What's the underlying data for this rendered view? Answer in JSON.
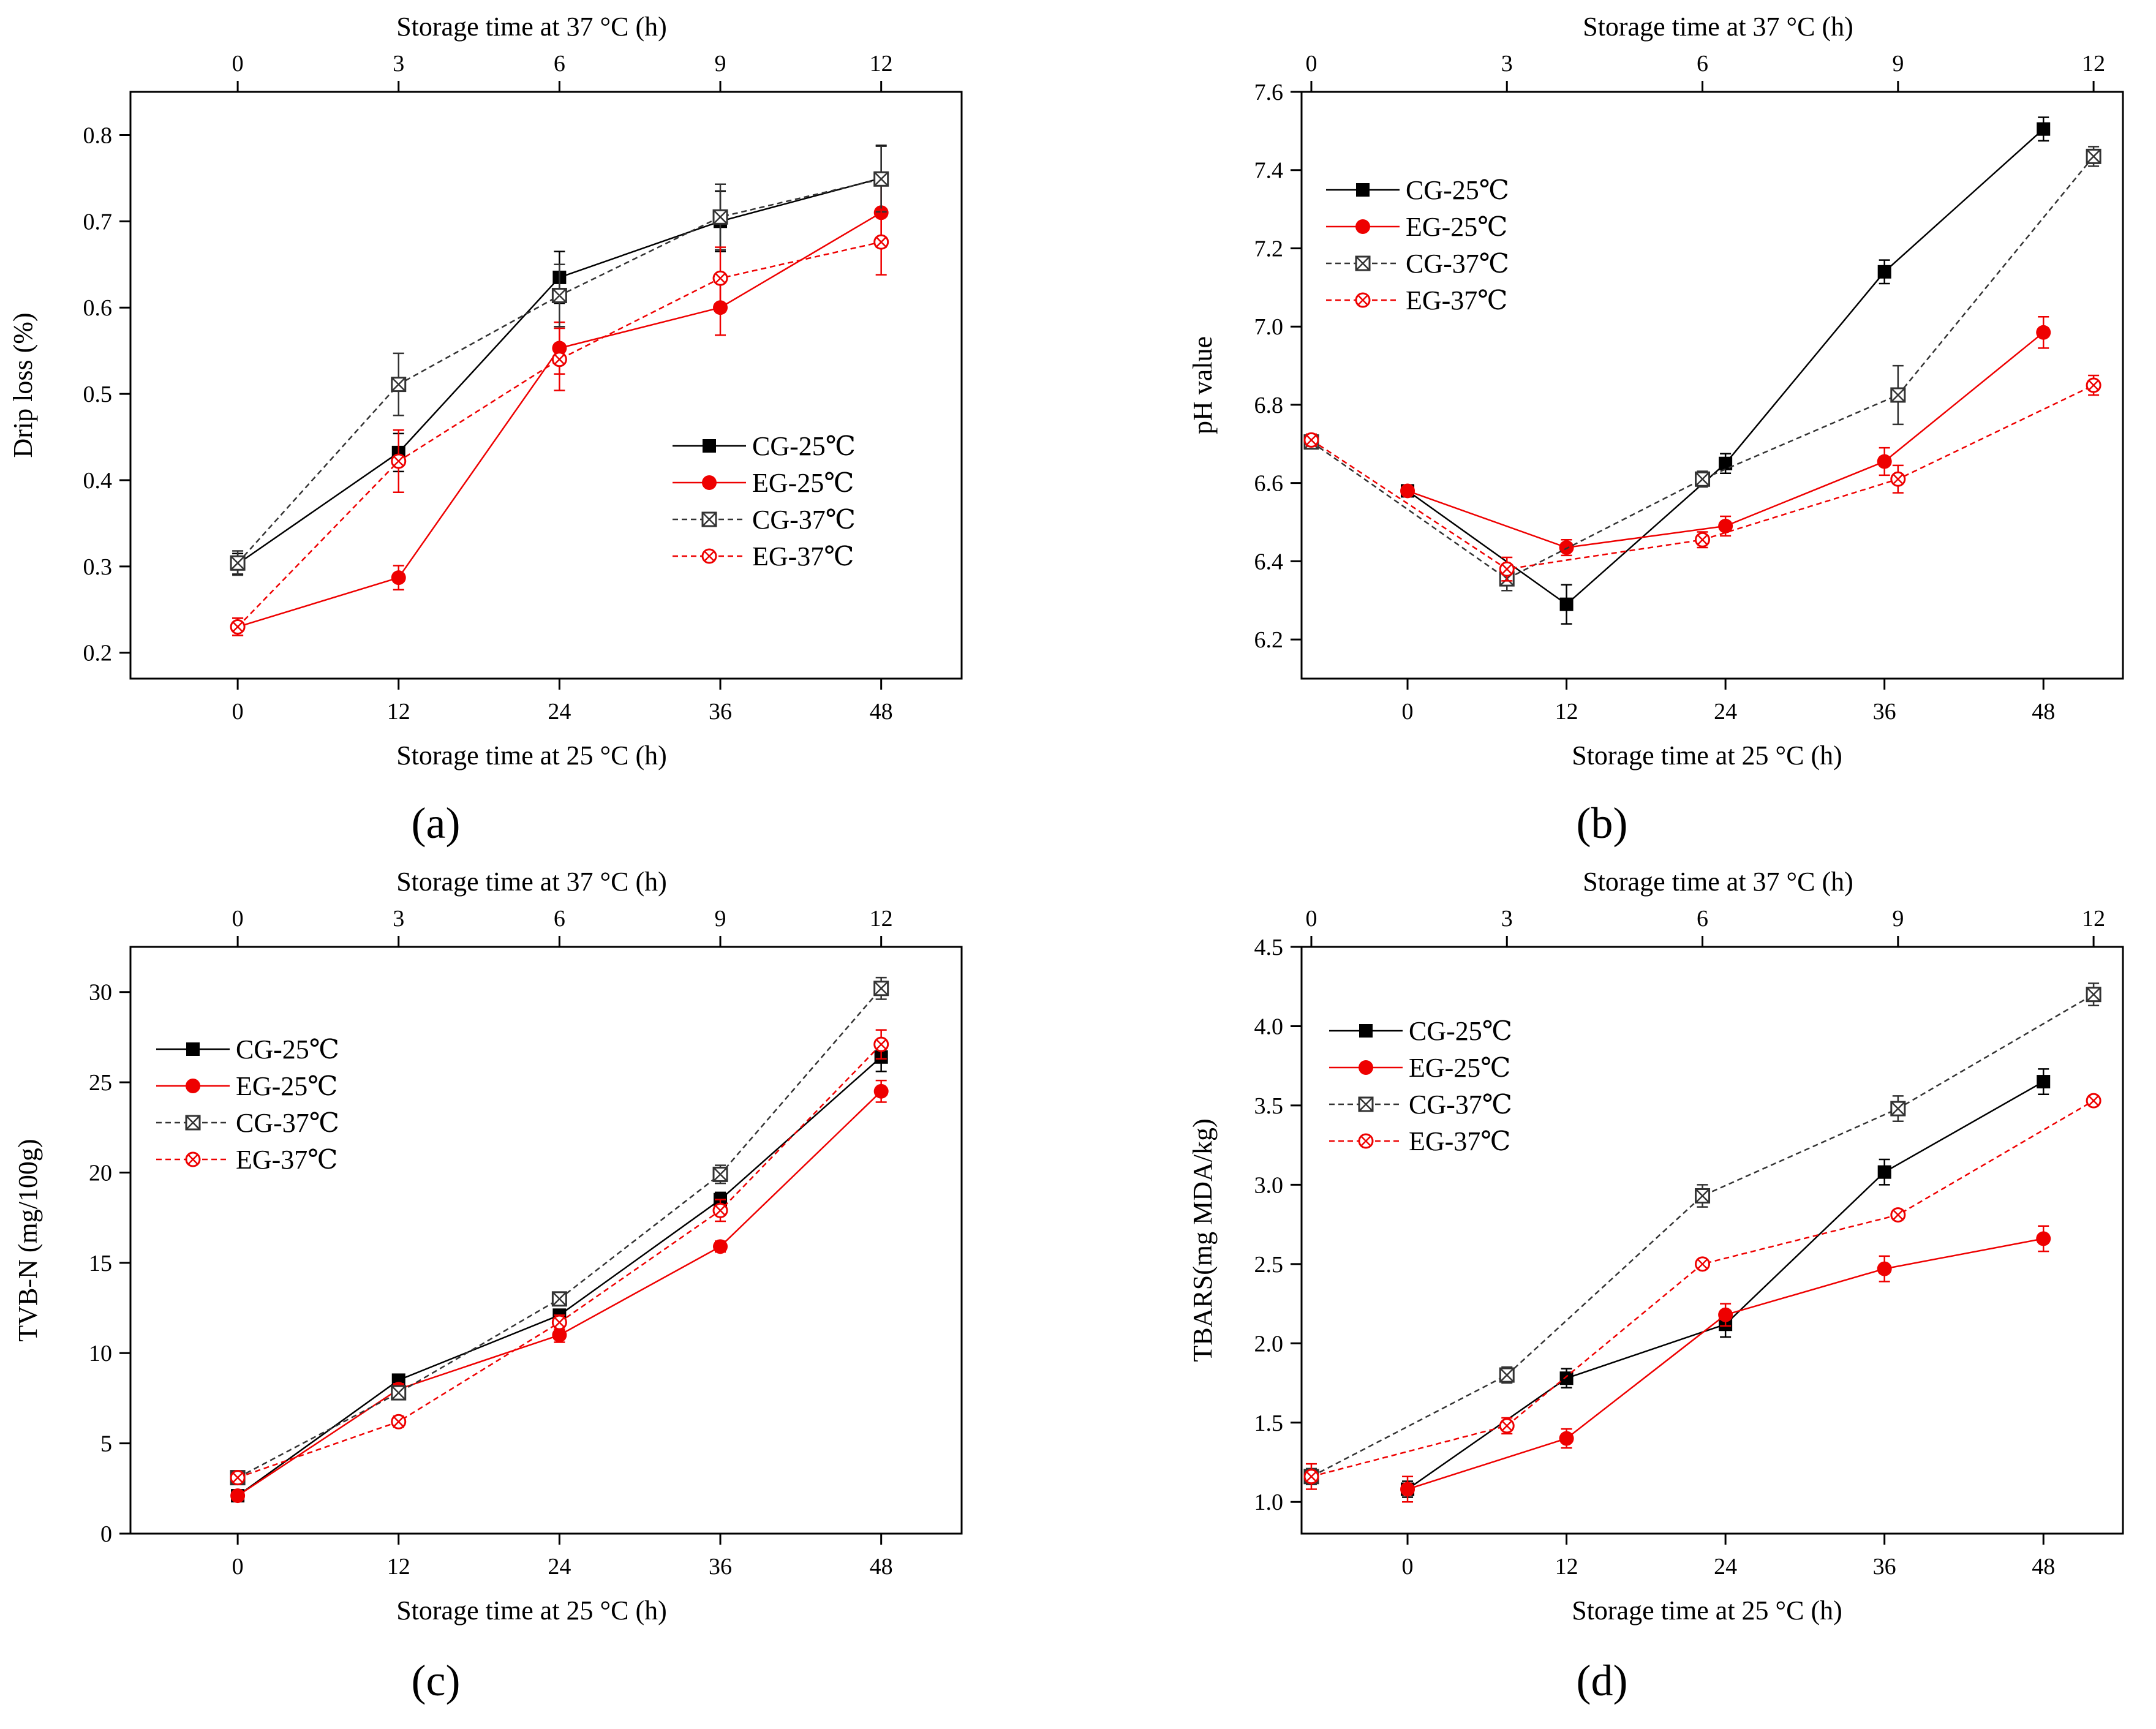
{
  "figure": {
    "panels": [
      "(a)",
      "(b)",
      "(c)",
      "(d)"
    ]
  },
  "chart_data": [
    {
      "type": "line",
      "panel": "(a)",
      "xlabel": "Storage time at 25 °C (h)",
      "x2label": "Storage time at 37 °C (h)",
      "ylabel": "Drip loss (%)",
      "xlim": [
        -8,
        54
      ],
      "xticks": [
        0,
        12,
        24,
        36,
        48
      ],
      "x2lim": [
        -2,
        13.5
      ],
      "x2ticks": [
        0,
        3,
        6,
        9,
        12
      ],
      "ylim": [
        0.17,
        0.85
      ],
      "yticks": [
        0.2,
        0.3,
        0.4,
        0.5,
        0.6,
        0.7,
        0.8
      ],
      "ytick_labels": [
        "0.2",
        "0.3",
        "0.4",
        "0.5",
        "0.6",
        "0.7",
        "0.8"
      ],
      "legend": {
        "position": "center-right",
        "entries": [
          "CG-25℃",
          "EG-25℃",
          "CG-37℃",
          "EG-37℃"
        ]
      },
      "series": [
        {
          "name": "CG-25℃",
          "axis": "bottom",
          "color": "#000000",
          "dash": false,
          "marker": "square-filled",
          "x": [
            0,
            12,
            24,
            36,
            48
          ],
          "y": [
            0.303,
            0.432,
            0.635,
            0.7,
            0.75
          ],
          "err": [
            0.012,
            0.022,
            0.03,
            0.035,
            0.038
          ]
        },
        {
          "name": "EG-25℃",
          "axis": "bottom",
          "color": "#ee0000",
          "dash": false,
          "marker": "circle-filled",
          "x": [
            0,
            12,
            24,
            36,
            48
          ],
          "y": [
            0.23,
            0.287,
            0.553,
            0.6,
            0.71
          ],
          "err": [
            0.01,
            0.014,
            0.03,
            0.032,
            0.04
          ]
        },
        {
          "name": "CG-37℃",
          "axis": "top",
          "color": "#333333",
          "dash": true,
          "marker": "square-cross",
          "x": [
            0,
            3,
            6,
            9,
            12
          ],
          "y": [
            0.304,
            0.511,
            0.614,
            0.705,
            0.749
          ],
          "err": [
            0.014,
            0.036,
            0.036,
            0.038,
            0.038
          ]
        },
        {
          "name": "EG-37℃",
          "axis": "top",
          "color": "#ee0000",
          "dash": true,
          "marker": "circle-cross",
          "x": [
            0,
            3,
            6,
            9,
            12
          ],
          "y": [
            0.23,
            0.422,
            0.54,
            0.634,
            0.676
          ],
          "err": [
            0.01,
            0.036,
            0.036,
            0.036,
            0.038
          ]
        }
      ]
    },
    {
      "type": "line",
      "panel": "(b)",
      "xlabel": "Storage time at 25 °C (h)",
      "x2label": "Storage time at 37 °C (h)",
      "ylabel": "pH value",
      "xlim": [
        -8,
        54
      ],
      "xticks": [
        0,
        12,
        24,
        36,
        48
      ],
      "x2lim": [
        -0.15,
        12.45
      ],
      "x2ticks": [
        0,
        3,
        6,
        9,
        12
      ],
      "ylim": [
        6.1,
        7.6
      ],
      "yticks": [
        6.2,
        6.4,
        6.6,
        6.8,
        7.0,
        7.2,
        7.4,
        7.6
      ],
      "ytick_labels": [
        "6.2",
        "6.4",
        "6.6",
        "6.8",
        "7.0",
        "7.2",
        "7.4",
        "7.6"
      ],
      "legend": {
        "position": "top-left",
        "entries": [
          "CG-25℃",
          "EG-25℃",
          "CG-37℃",
          "EG-37℃"
        ]
      },
      "series": [
        {
          "name": "CG-25℃",
          "axis": "bottom",
          "color": "#000000",
          "dash": false,
          "marker": "square-filled",
          "x": [
            0,
            12,
            24,
            36,
            48
          ],
          "y": [
            6.58,
            6.29,
            6.65,
            7.14,
            7.505
          ],
          "err": [
            0.01,
            0.05,
            0.025,
            0.03,
            0.03
          ]
        },
        {
          "name": "EG-25℃",
          "axis": "bottom",
          "color": "#ee0000",
          "dash": false,
          "marker": "circle-filled",
          "x": [
            0,
            12,
            24,
            36,
            48
          ],
          "y": [
            6.58,
            6.435,
            6.49,
            6.655,
            6.985
          ],
          "err": [
            0.01,
            0.02,
            0.025,
            0.035,
            0.04
          ]
        },
        {
          "name": "CG-37℃",
          "axis": "top",
          "color": "#333333",
          "dash": true,
          "marker": "square-cross",
          "x": [
            0,
            3,
            6,
            9,
            12
          ],
          "y": [
            6.705,
            6.355,
            6.61,
            6.825,
            7.435
          ],
          "err": [
            0.015,
            0.03,
            0.02,
            0.075,
            0.025
          ]
        },
        {
          "name": "EG-37℃",
          "axis": "top",
          "color": "#ee0000",
          "dash": true,
          "marker": "circle-cross",
          "x": [
            0,
            3,
            6,
            9,
            12
          ],
          "y": [
            6.71,
            6.38,
            6.455,
            6.61,
            6.85
          ],
          "err": [
            0.015,
            0.03,
            0.02,
            0.035,
            0.025
          ]
        }
      ]
    },
    {
      "type": "line",
      "panel": "(c)",
      "xlabel": "Storage time at 25 °C (h)",
      "x2label": "Storage time at 37 °C (h)",
      "ylabel": "TVB-N (mg/100g)",
      "xlim": [
        -8,
        54
      ],
      "xticks": [
        0,
        12,
        24,
        36,
        48
      ],
      "x2lim": [
        -2,
        13.5
      ],
      "x2ticks": [
        0,
        3,
        6,
        9,
        12
      ],
      "ylim": [
        0,
        32.5
      ],
      "yticks": [
        0,
        5,
        10,
        15,
        20,
        25,
        30
      ],
      "ytick_labels": [
        "0",
        "5",
        "10",
        "15",
        "20",
        "25",
        "30"
      ],
      "legend": {
        "position": "top-left",
        "entries": [
          "CG-25℃",
          "EG-25℃",
          "CG-37℃",
          "EG-37℃"
        ]
      },
      "series": [
        {
          "name": "CG-25℃",
          "axis": "bottom",
          "color": "#000000",
          "dash": false,
          "marker": "square-filled",
          "x": [
            0,
            12,
            24,
            36,
            48
          ],
          "y": [
            2.1,
            8.5,
            12.1,
            18.5,
            26.4
          ],
          "err": [
            0.2,
            0.3,
            0.3,
            0.4,
            0.8
          ]
        },
        {
          "name": "EG-25℃",
          "axis": "bottom",
          "color": "#ee0000",
          "dash": false,
          "marker": "circle-filled",
          "x": [
            0,
            12,
            24,
            36,
            48
          ],
          "y": [
            2.1,
            8.0,
            11.0,
            15.9,
            24.5
          ],
          "err": [
            0.2,
            0.3,
            0.4,
            0.3,
            0.6
          ]
        },
        {
          "name": "CG-37℃",
          "axis": "top",
          "color": "#333333",
          "dash": true,
          "marker": "square-cross",
          "x": [
            0,
            3,
            6,
            9,
            12
          ],
          "y": [
            3.1,
            7.8,
            13.0,
            19.9,
            30.2
          ],
          "err": [
            0.2,
            0.3,
            0.3,
            0.5,
            0.6
          ]
        },
        {
          "name": "EG-37℃",
          "axis": "top",
          "color": "#ee0000",
          "dash": true,
          "marker": "circle-cross",
          "x": [
            0,
            3,
            6,
            9,
            12
          ],
          "y": [
            3.1,
            6.2,
            11.7,
            17.9,
            27.1
          ],
          "err": [
            0.2,
            0.3,
            0.4,
            0.6,
            0.8
          ]
        }
      ]
    },
    {
      "type": "line",
      "panel": "(d)",
      "xlabel": "Storage time at 25 °C (h)",
      "x2label": "Storage time at 37 °C (h)",
      "ylabel": "TBARS(mg MDA/kg)",
      "xlim": [
        -8,
        54
      ],
      "xticks": [
        0,
        12,
        24,
        36,
        48
      ],
      "x2lim": [
        -0.15,
        12.45
      ],
      "x2ticks": [
        0,
        3,
        6,
        9,
        12
      ],
      "ylim": [
        0.8,
        4.5
      ],
      "yticks": [
        1.0,
        1.5,
        2.0,
        2.5,
        3.0,
        3.5,
        4.0,
        4.5
      ],
      "ytick_labels": [
        "1.0",
        "1.5",
        "2.0",
        "2.5",
        "3.0",
        "3.5",
        "4.0",
        "4.5"
      ],
      "legend": {
        "position": "top-left",
        "entries": [
          "CG-25℃",
          "EG-25℃",
          "CG-37℃",
          "EG-37℃"
        ]
      },
      "series": [
        {
          "name": "CG-25℃",
          "axis": "bottom",
          "color": "#000000",
          "dash": false,
          "marker": "square-filled",
          "x": [
            0,
            12,
            24,
            36,
            48
          ],
          "y": [
            1.08,
            1.78,
            2.12,
            3.08,
            3.65
          ],
          "err": [
            0.05,
            0.06,
            0.08,
            0.08,
            0.08
          ]
        },
        {
          "name": "EG-25℃",
          "axis": "bottom",
          "color": "#ee0000",
          "dash": false,
          "marker": "circle-filled",
          "x": [
            0,
            12,
            24,
            36,
            48
          ],
          "y": [
            1.08,
            1.4,
            2.18,
            2.47,
            2.66
          ],
          "err": [
            0.08,
            0.06,
            0.07,
            0.08,
            0.08
          ]
        },
        {
          "name": "CG-37℃",
          "axis": "top",
          "color": "#333333",
          "dash": true,
          "marker": "square-cross",
          "x": [
            0,
            3,
            6,
            9,
            12
          ],
          "y": [
            1.16,
            1.8,
            2.93,
            3.48,
            4.2
          ],
          "err": [
            0.05,
            0.05,
            0.07,
            0.08,
            0.07
          ]
        },
        {
          "name": "EG-37℃",
          "axis": "top",
          "color": "#ee0000",
          "dash": true,
          "marker": "circle-cross",
          "x": [
            0,
            3,
            6,
            9,
            12
          ],
          "y": [
            1.16,
            1.48,
            2.5,
            2.81,
            3.53
          ],
          "err": [
            0.08,
            0.05,
            0.03,
            0.03,
            0.03
          ]
        }
      ]
    }
  ]
}
